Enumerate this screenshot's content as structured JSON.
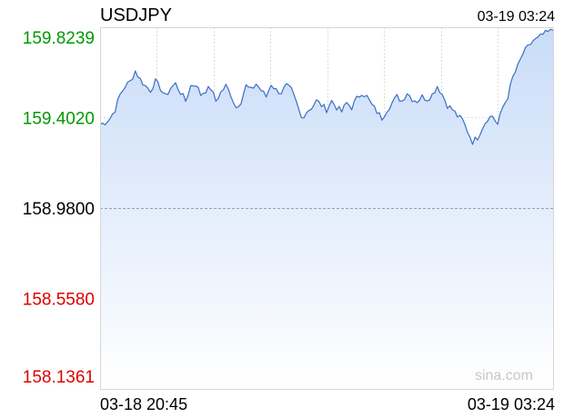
{
  "header": {
    "symbol": "USDJPY",
    "timestamp": "03-19 03:24"
  },
  "watermark": "sina.com",
  "colors": {
    "up": "#009900",
    "down": "#dd0000",
    "neutral": "#000000",
    "line": "#3a6fc4",
    "fill_top": "#c9dcf8",
    "grid": "#d6d6d6"
  },
  "chart_data": {
    "type": "area",
    "y_ticks": [
      {
        "label": "159.8239",
        "value": 159.8239,
        "color": "up"
      },
      {
        "label": "159.4020",
        "value": 159.402,
        "color": "up"
      },
      {
        "label": "158.9800",
        "value": 158.98,
        "color": "neutral"
      },
      {
        "label": "158.5580",
        "value": 158.558,
        "color": "down"
      },
      {
        "label": "158.1361",
        "value": 158.1361,
        "color": "down"
      }
    ],
    "x_labels": {
      "start": "03-18 20:45",
      "end": "03-19 03:24"
    },
    "ylim": [
      158.1361,
      159.8239
    ],
    "reference": 158.98,
    "grid": true,
    "samples_per_step": 2,
    "series": [
      {
        "values": [
          159.37,
          159.38,
          159.4,
          159.44,
          159.51,
          159.55,
          159.57,
          159.62,
          159.58,
          159.55,
          159.53,
          159.57,
          159.54,
          159.5,
          159.54,
          159.56,
          159.52,
          159.48,
          159.55,
          159.56,
          159.51,
          159.53,
          159.54,
          159.48,
          159.52,
          159.55,
          159.51,
          159.45,
          159.48,
          159.55,
          159.53,
          159.56,
          159.53,
          159.5,
          159.56,
          159.53,
          159.52,
          159.55,
          159.53,
          159.47,
          159.4,
          159.43,
          159.45,
          159.48,
          159.46,
          159.44,
          159.48,
          159.45,
          159.43,
          159.47,
          159.45,
          159.49,
          159.52,
          159.5,
          159.46,
          159.43,
          159.4,
          159.44,
          159.47,
          159.5,
          159.48,
          159.52,
          159.49,
          159.48,
          159.5,
          159.49,
          159.51,
          159.55,
          159.51,
          159.46,
          159.44,
          159.41,
          159.39,
          159.34,
          159.29,
          159.31,
          159.36,
          159.4,
          159.41,
          159.37,
          159.45,
          159.5,
          159.59,
          159.64,
          159.7,
          159.73,
          159.76,
          159.77,
          159.79,
          159.8,
          159.81
        ]
      }
    ]
  }
}
